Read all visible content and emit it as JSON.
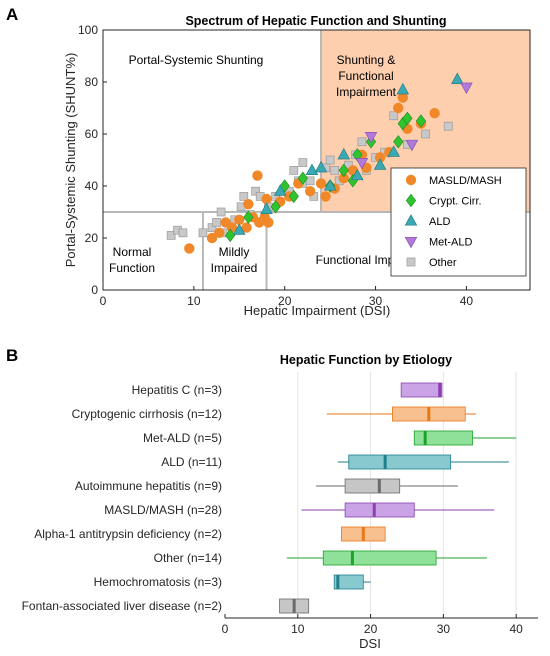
{
  "panel_a": {
    "letter": "A",
    "regions": {
      "portal_systemic": "Portal-Systemic Shunting",
      "shunting_functional": [
        "Shunting &",
        "Functional",
        "Impairment"
      ],
      "normal": [
        "Normal",
        "Function"
      ],
      "mildly": [
        "Mildly",
        "Impaired"
      ],
      "functional": "Functional Impairment"
    },
    "colors": {
      "shaded_region": "#fdcfaf",
      "MASLD/MASH": "#f0882a",
      "Crypt. Cirr.": "#2fc42f",
      "ALD": "#3aaab2",
      "Met-ALD": "#b27ad8",
      "Other": "#c8c8c8"
    }
  },
  "panel_b": {
    "letter": "B",
    "colors": {
      "purple": "#c9a3e6",
      "purple_dark": "#8b3fb0",
      "orange": "#f9c08f",
      "orange_dark": "#e97716",
      "green": "#8fe19a",
      "green_dark": "#1ca32a",
      "teal": "#88c9d0",
      "teal_dark": "#1f7f8a",
      "gray": "#c6c6c6",
      "gray_dark": "#6a6a6a"
    }
  },
  "chart_data": [
    {
      "type": "scatter",
      "title": "Spectrum of Hepatic Function and Shunting",
      "xlabel": "Hepatic Impairment (DSI)",
      "ylabel": "Portal-Systemic Shunting (SHUNT%)",
      "xlim": [
        0,
        47
      ],
      "ylim": [
        0,
        100
      ],
      "xticks": [
        0,
        10,
        20,
        30,
        40
      ],
      "yticks": [
        0,
        20,
        40,
        60,
        80,
        100
      ],
      "legend_position": "lower-right",
      "series": [
        {
          "name": "MASLD/MASH",
          "marker": "circle",
          "points": [
            [
              9.5,
              16
            ],
            [
              12,
              20
            ],
            [
              12.8,
              22
            ],
            [
              13.5,
              26
            ],
            [
              14.2,
              24
            ],
            [
              15,
              27
            ],
            [
              15.8,
              24
            ],
            [
              16,
              33
            ],
            [
              16.5,
              28
            ],
            [
              17,
              44
            ],
            [
              17.2,
              26
            ],
            [
              17.8,
              28
            ],
            [
              18.2,
              26
            ],
            [
              18,
              35
            ],
            [
              19.5,
              34
            ],
            [
              20.5,
              36
            ],
            [
              21.5,
              41
            ],
            [
              22.8,
              38
            ],
            [
              24,
              41
            ],
            [
              25.5,
              39
            ],
            [
              26.5,
              43
            ],
            [
              27.5,
              46
            ],
            [
              28.5,
              52
            ],
            [
              29,
              47
            ],
            [
              30.5,
              51
            ],
            [
              31.5,
              53
            ],
            [
              32.5,
              70
            ],
            [
              33,
              74
            ],
            [
              33.5,
              62
            ],
            [
              35,
              64
            ],
            [
              36.5,
              68
            ],
            [
              24.5,
              36
            ]
          ]
        },
        {
          "name": "Crypt. Cirr.",
          "marker": "diamond",
          "points": [
            [
              14,
              21
            ],
            [
              16,
              28
            ],
            [
              19,
              32
            ],
            [
              20,
              40
            ],
            [
              21,
              36
            ],
            [
              22,
              43
            ],
            [
              25,
              40
            ],
            [
              26.5,
              46
            ],
            [
              27.5,
              42
            ],
            [
              28,
              52
            ],
            [
              29.5,
              57
            ],
            [
              32.5,
              57
            ],
            [
              33,
              64
            ],
            [
              33.5,
              66
            ],
            [
              35,
              65
            ]
          ]
        },
        {
          "name": "ALD",
          "marker": "triangle-up",
          "points": [
            [
              15,
              23
            ],
            [
              18,
              31
            ],
            [
              19.5,
              38
            ],
            [
              23,
              46
            ],
            [
              24,
              47
            ],
            [
              25,
              40
            ],
            [
              26.5,
              52
            ],
            [
              28,
              44
            ],
            [
              30.5,
              48
            ],
            [
              32,
              53
            ],
            [
              33,
              77
            ],
            [
              39,
              81
            ]
          ]
        },
        {
          "name": "Met-ALD",
          "marker": "triangle-down",
          "points": [
            [
              28.5,
              49
            ],
            [
              29.5,
              59
            ],
            [
              34,
              56
            ],
            [
              40,
              78
            ]
          ]
        },
        {
          "name": "Other",
          "marker": "square",
          "points": [
            [
              7.5,
              21
            ],
            [
              8.2,
              23
            ],
            [
              8.8,
              22
            ],
            [
              11,
              22
            ],
            [
              12,
              24
            ],
            [
              12.5,
              26
            ],
            [
              13,
              30
            ],
            [
              13.2,
              22
            ],
            [
              14.5,
              27
            ],
            [
              15.2,
              32
            ],
            [
              15.5,
              36
            ],
            [
              16.2,
              29
            ],
            [
              16.8,
              38
            ],
            [
              17.3,
              36
            ],
            [
              18.2,
              32
            ],
            [
              19,
              36
            ],
            [
              20.5,
              38
            ],
            [
              21,
              46
            ],
            [
              21.5,
              42
            ],
            [
              22,
              41
            ],
            [
              22,
              49
            ],
            [
              22.8,
              42
            ],
            [
              23.2,
              36
            ],
            [
              24.5,
              47
            ],
            [
              25,
              50
            ],
            [
              25.5,
              46
            ],
            [
              26,
              42
            ],
            [
              27,
              48
            ],
            [
              27.8,
              52
            ],
            [
              28.5,
              57
            ],
            [
              29,
              46
            ],
            [
              30,
              51
            ],
            [
              31,
              53
            ],
            [
              32,
              67
            ],
            [
              33.5,
              56
            ],
            [
              35.5,
              60
            ],
            [
              38,
              63
            ]
          ]
        }
      ],
      "region_bounds": {
        "horizontal_cut": 30,
        "shunting_x_start": 24,
        "normal_x_end": 11,
        "mild_x_end": 18
      }
    },
    {
      "type": "boxplot",
      "title": "Hepatic Function by Etiology",
      "xlabel": "DSI",
      "xlim": [
        0,
        43
      ],
      "xticks": [
        0,
        10,
        20,
        30,
        40
      ],
      "grid": "vertical",
      "categories": [
        "Hepatitis C (n=3)",
        "Cryptogenic cirrhosis (n=12)",
        "Met-ALD (n=5)",
        "ALD (n=11)",
        "Autoimmune hepatitis (n=9)",
        "MASLD/MASH (n=28)",
        "Alpha-1 antitrypsin deficiency (n=2)",
        "Other (n=14)",
        "Hemochromatosis (n=3)",
        "Fontan-associated liver disease (n=2)"
      ],
      "boxes": [
        {
          "min": 24.2,
          "q1": 24.2,
          "median": 29.5,
          "q3": 29.8,
          "max": 29.8,
          "color": "purple"
        },
        {
          "min": 14.0,
          "q1": 23.0,
          "median": 28.0,
          "q3": 33.0,
          "max": 34.5,
          "color": "orange"
        },
        {
          "min": 26.0,
          "q1": 26.0,
          "median": 27.5,
          "q3": 34.0,
          "max": 40.0,
          "color": "green"
        },
        {
          "min": 15.5,
          "q1": 17.0,
          "median": 22.0,
          "q3": 31.0,
          "max": 39.0,
          "color": "teal"
        },
        {
          "min": 12.5,
          "q1": 16.5,
          "median": 21.2,
          "q3": 24.0,
          "max": 32.0,
          "color": "gray"
        },
        {
          "min": 10.5,
          "q1": 16.5,
          "median": 20.5,
          "q3": 26.0,
          "max": 37.0,
          "color": "purple"
        },
        {
          "min": 16.0,
          "q1": 16.0,
          "median": 19.0,
          "q3": 22.0,
          "max": 22.0,
          "color": "orange"
        },
        {
          "min": 8.5,
          "q1": 13.5,
          "median": 17.5,
          "q3": 29.0,
          "max": 36.0,
          "color": "green"
        },
        {
          "min": 15.0,
          "q1": 15.0,
          "median": 15.5,
          "q3": 19.0,
          "max": 20.0,
          "color": "teal"
        },
        {
          "min": 7.5,
          "q1": 7.5,
          "median": 9.5,
          "q3": 11.5,
          "max": 11.5,
          "color": "gray"
        }
      ]
    }
  ]
}
